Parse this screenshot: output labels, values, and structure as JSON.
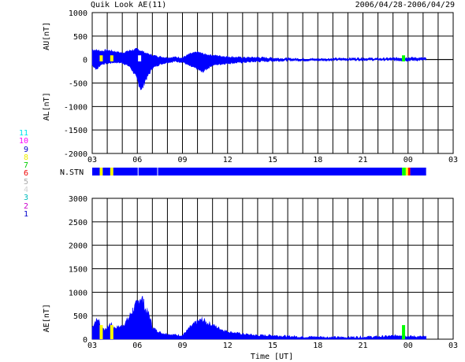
{
  "header": {
    "title": "Quik Look AE(11)",
    "date_range": "2006/04/28-2006/04/29"
  },
  "station_legend": [
    {
      "label": "11",
      "color": "#00e5ee"
    },
    {
      "label": "10",
      "color": "#ff00ff"
    },
    {
      "label": "9",
      "color": "#0000cd"
    },
    {
      "label": "8",
      "color": "#eeee00"
    },
    {
      "label": "7",
      "color": "#00cc00"
    },
    {
      "label": "6",
      "color": "#ee0000"
    },
    {
      "label": "5",
      "color": "#aaaaaa"
    },
    {
      "label": "4",
      "color": "#d0d0d0"
    },
    {
      "label": "3",
      "color": "#00bbbb"
    },
    {
      "label": "2",
      "color": "#cc00cc"
    },
    {
      "label": "1",
      "color": "#0000cc"
    }
  ],
  "colors": {
    "fill": "#0000ff",
    "yellow": "#ffff00",
    "green": "#00ff00",
    "red": "#ff0000"
  },
  "chart_data": [
    {
      "type": "area",
      "name": "AU/AL",
      "ylabel_top": "AU[nT]",
      "ylabel_bottom": "AL[nT]",
      "ylim": [
        -2000,
        1000
      ],
      "yticks": [
        1000,
        500,
        0,
        -500,
        -1000,
        -1500,
        -2000
      ],
      "xticks": [
        "03",
        "06",
        "09",
        "12",
        "15",
        "18",
        "21",
        "00",
        "03"
      ],
      "x_range_hours": [
        3,
        27
      ],
      "data_end_hour": 25.2,
      "grid": true,
      "au": {
        "x": [
          3.0,
          3.3,
          3.6,
          4.0,
          4.5,
          5.0,
          5.5,
          6.0,
          6.3,
          6.6,
          7.0,
          7.5,
          8.0,
          8.5,
          9.0,
          9.5,
          10.0,
          10.5,
          11.0,
          12.0,
          13.0,
          14.0,
          15.0,
          16.0,
          17.0,
          18.0,
          19.0,
          20.0,
          21.0,
          22.0,
          23.0,
          24.0,
          25.2
        ],
        "y": [
          210,
          200,
          180,
          200,
          170,
          140,
          190,
          220,
          180,
          130,
          90,
          60,
          40,
          50,
          40,
          120,
          160,
          110,
          90,
          60,
          40,
          45,
          30,
          20,
          15,
          15,
          20,
          25,
          30,
          20,
          30,
          40,
          30
        ]
      },
      "al": {
        "x": [
          3.0,
          3.3,
          3.6,
          4.0,
          4.5,
          5.0,
          5.5,
          5.8,
          6.1,
          6.3,
          6.5,
          6.8,
          7.0,
          7.5,
          8.0,
          8.5,
          9.0,
          9.5,
          10.0,
          10.3,
          10.7,
          11.0,
          12.0,
          13.0,
          14.0,
          15.0,
          16.0,
          17.0,
          18.0,
          19.0,
          20.0,
          21.0,
          22.0,
          23.0,
          24.0,
          25.2
        ],
        "y": [
          -120,
          -210,
          -100,
          -80,
          -60,
          -70,
          -150,
          -300,
          -520,
          -650,
          -450,
          -300,
          -180,
          -100,
          -60,
          -40,
          -50,
          -140,
          -200,
          -270,
          -180,
          -120,
          -80,
          -60,
          -40,
          -30,
          -20,
          -20,
          -20,
          -15,
          -10,
          -10,
          -10,
          -15,
          -20,
          -10
        ]
      },
      "markers": [
        {
          "hour": 3.6,
          "color": "yellow"
        },
        {
          "hour": 4.3,
          "color": "yellow"
        },
        {
          "hour": 6.15,
          "color": "white"
        },
        {
          "hour": 23.7,
          "color": "green"
        }
      ]
    },
    {
      "type": "bar",
      "name": "station-strip",
      "label": "N.STN",
      "x_range_hours": [
        3,
        25.2
      ],
      "segments": [
        {
          "from": 3.0,
          "to": 3.5,
          "color": "fill"
        },
        {
          "from": 3.5,
          "to": 3.7,
          "color": "yellow"
        },
        {
          "from": 3.7,
          "to": 4.2,
          "color": "fill"
        },
        {
          "from": 4.2,
          "to": 4.4,
          "color": "yellow"
        },
        {
          "from": 4.4,
          "to": 23.6,
          "color": "fill"
        },
        {
          "from": 23.6,
          "to": 23.85,
          "color": "green"
        },
        {
          "from": 23.85,
          "to": 24.0,
          "color": "yellow"
        },
        {
          "from": 24.0,
          "to": 24.15,
          "color": "red"
        },
        {
          "from": 24.15,
          "to": 25.2,
          "color": "fill"
        }
      ],
      "gaps": [
        6.05,
        7.35
      ]
    },
    {
      "type": "area",
      "name": "AE",
      "ylabel": "AE[nT]",
      "xlabel": "Time [UT]",
      "ylim": [
        0,
        3000
      ],
      "yticks": [
        3000,
        2500,
        2000,
        1500,
        1000,
        500,
        0
      ],
      "xticks": [
        "03",
        "06",
        "09",
        "12",
        "15",
        "18",
        "21",
        "00",
        "03"
      ],
      "x_range_hours": [
        3,
        27
      ],
      "data_end_hour": 25.2,
      "grid": true,
      "ae": {
        "x": [
          3.0,
          3.2,
          3.4,
          3.6,
          3.9,
          4.2,
          4.5,
          5.0,
          5.4,
          5.7,
          6.0,
          6.2,
          6.35,
          6.5,
          6.8,
          7.0,
          7.3,
          7.6,
          8.0,
          8.5,
          9.0,
          9.5,
          9.9,
          10.3,
          10.6,
          11.0,
          11.5,
          12.0,
          13.0,
          14.0,
          15.0,
          16.0,
          17.0,
          18.0,
          19.0,
          20.0,
          21.0,
          22.0,
          23.0,
          23.7,
          24.0,
          25.2
        ],
        "y": [
          250,
          380,
          420,
          260,
          200,
          330,
          240,
          280,
          430,
          620,
          750,
          900,
          850,
          650,
          500,
          250,
          180,
          130,
          110,
          90,
          80,
          250,
          350,
          420,
          350,
          300,
          220,
          160,
          110,
          80,
          80,
          60,
          50,
          50,
          40,
          40,
          50,
          50,
          70,
          90,
          60,
          50
        ]
      },
      "markers": [
        {
          "hour": 3.6,
          "color": "yellow"
        },
        {
          "hour": 4.3,
          "color": "yellow"
        },
        {
          "hour": 23.7,
          "color": "green"
        }
      ]
    }
  ]
}
